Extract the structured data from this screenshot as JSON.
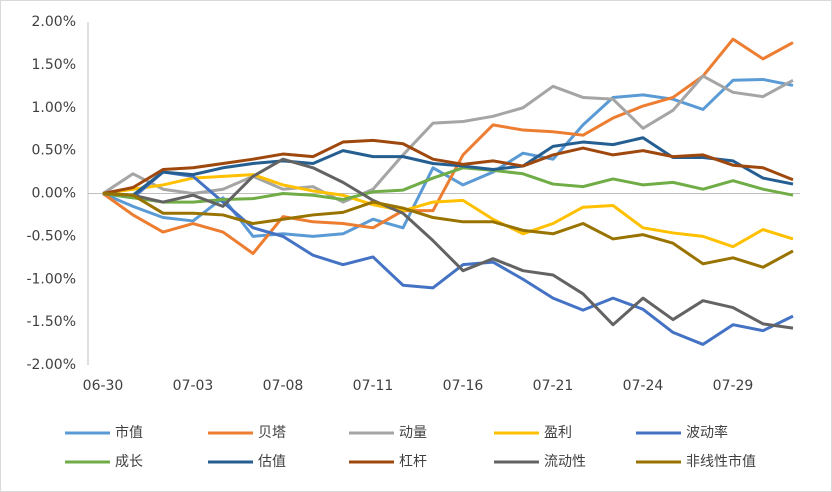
{
  "chart_data": {
    "type": "line",
    "categories": [
      "06-30",
      null,
      null,
      "07-03",
      null,
      null,
      "07-08",
      null,
      null,
      "07-11",
      null,
      null,
      "07-16",
      null,
      null,
      "07-21",
      null,
      null,
      "07-24",
      null,
      null,
      "07-29",
      null,
      null
    ],
    "ylim": [
      -2,
      2
    ],
    "yticks": [
      {
        "value": -2,
        "label": "-2.00%"
      },
      {
        "value": -1.5,
        "label": "-1.50%"
      },
      {
        "value": -1,
        "label": "-1.00%"
      },
      {
        "value": -0.5,
        "label": "-0.50%"
      },
      {
        "value": 0,
        "label": "0.00%"
      },
      {
        "value": 0.5,
        "label": "0.50%"
      },
      {
        "value": 1,
        "label": "1.00%"
      },
      {
        "value": 1.5,
        "label": "1.50%"
      },
      {
        "value": 2,
        "label": "2.00%"
      }
    ],
    "grid": false,
    "legend": "bottom",
    "series": [
      {
        "name": "市值",
        "color": "#5b9bd5",
        "values": [
          0,
          -0.15,
          -0.28,
          -0.32,
          -0.05,
          -0.5,
          -0.47,
          -0.5,
          -0.47,
          -0.3,
          -0.4,
          0.3,
          0.1,
          0.25,
          0.47,
          0.4,
          0.8,
          1.12,
          1.15,
          1.1,
          0.98,
          1.32,
          1.33,
          1.26
        ]
      },
      {
        "name": "贝塔",
        "color": "#ed7d31",
        "values": [
          0,
          -0.25,
          -0.45,
          -0.35,
          -0.45,
          -0.7,
          -0.27,
          -0.33,
          -0.35,
          -0.4,
          -0.2,
          -0.2,
          0.45,
          0.8,
          0.74,
          0.72,
          0.68,
          0.88,
          1.02,
          1.12,
          1.37,
          1.8,
          1.57,
          1.76
        ]
      },
      {
        "name": "动量",
        "color": "#a5a5a5",
        "values": [
          0,
          0.23,
          0.05,
          0,
          0.05,
          0.2,
          0.05,
          0.08,
          -0.1,
          0.05,
          0.45,
          0.82,
          0.84,
          0.9,
          1,
          1.25,
          1.12,
          1.1,
          0.76,
          0.97,
          1.37,
          1.18,
          1.13,
          1.32
        ]
      },
      {
        "name": "盈利",
        "color": "#ffc000",
        "values": [
          0,
          0.05,
          0.1,
          0.18,
          0.2,
          0.22,
          0.1,
          0.03,
          -0.02,
          -0.13,
          -0.2,
          -0.1,
          -0.08,
          -0.3,
          -0.47,
          -0.35,
          -0.16,
          -0.14,
          -0.4,
          -0.46,
          -0.5,
          -0.62,
          -0.42,
          -0.53
        ]
      },
      {
        "name": "波动率",
        "color": "#4472c4",
        "values": [
          0,
          -0.05,
          0.25,
          0.2,
          -0.1,
          -0.4,
          -0.5,
          -0.72,
          -0.83,
          -0.74,
          -1.07,
          -1.1,
          -0.83,
          -0.8,
          -1,
          -1.22,
          -1.36,
          -1.22,
          -1.35,
          -1.62,
          -1.76,
          -1.53,
          -1.6,
          -1.43
        ]
      },
      {
        "name": "成长",
        "color": "#70ad47",
        "values": [
          0,
          -0.05,
          -0.1,
          -0.1,
          -0.07,
          -0.06,
          0,
          -0.02,
          -0.07,
          0.02,
          0.04,
          0.18,
          0.3,
          0.27,
          0.23,
          0.11,
          0.08,
          0.17,
          0.1,
          0.13,
          0.05,
          0.15,
          0.05,
          -0.02
        ]
      },
      {
        "name": "估值",
        "color": "#255e91",
        "values": [
          0,
          -0.02,
          0.25,
          0.22,
          0.3,
          0.35,
          0.38,
          0.35,
          0.5,
          0.43,
          0.43,
          0.35,
          0.32,
          0.28,
          0.32,
          0.55,
          0.6,
          0.57,
          0.65,
          0.42,
          0.42,
          0.38,
          0.18,
          0.11
        ]
      },
      {
        "name": "杠杆",
        "color": "#9e480e",
        "values": [
          0,
          0.07,
          0.28,
          0.3,
          0.35,
          0.4,
          0.46,
          0.43,
          0.6,
          0.62,
          0.58,
          0.4,
          0.34,
          0.38,
          0.32,
          0.45,
          0.53,
          0.45,
          0.5,
          0.43,
          0.45,
          0.33,
          0.3,
          0.16
        ]
      },
      {
        "name": "流动性",
        "color": "#636363",
        "values": [
          0,
          -0.02,
          -0.1,
          -0.02,
          -0.15,
          0.2,
          0.4,
          0.3,
          0.13,
          -0.08,
          -0.23,
          -0.55,
          -0.9,
          -0.76,
          -0.9,
          -0.95,
          -1.17,
          -1.53,
          -1.22,
          -1.47,
          -1.25,
          -1.33,
          -1.52,
          -1.57
        ]
      },
      {
        "name": "非线性市值",
        "color": "#997300",
        "values": [
          0,
          -0.02,
          -0.23,
          -0.23,
          -0.25,
          -0.35,
          -0.3,
          -0.25,
          -0.22,
          -0.1,
          -0.17,
          -0.28,
          -0.33,
          -0.33,
          -0.43,
          -0.47,
          -0.35,
          -0.53,
          -0.48,
          -0.58,
          -0.82,
          -0.75,
          -0.86,
          -0.67
        ]
      }
    ]
  }
}
